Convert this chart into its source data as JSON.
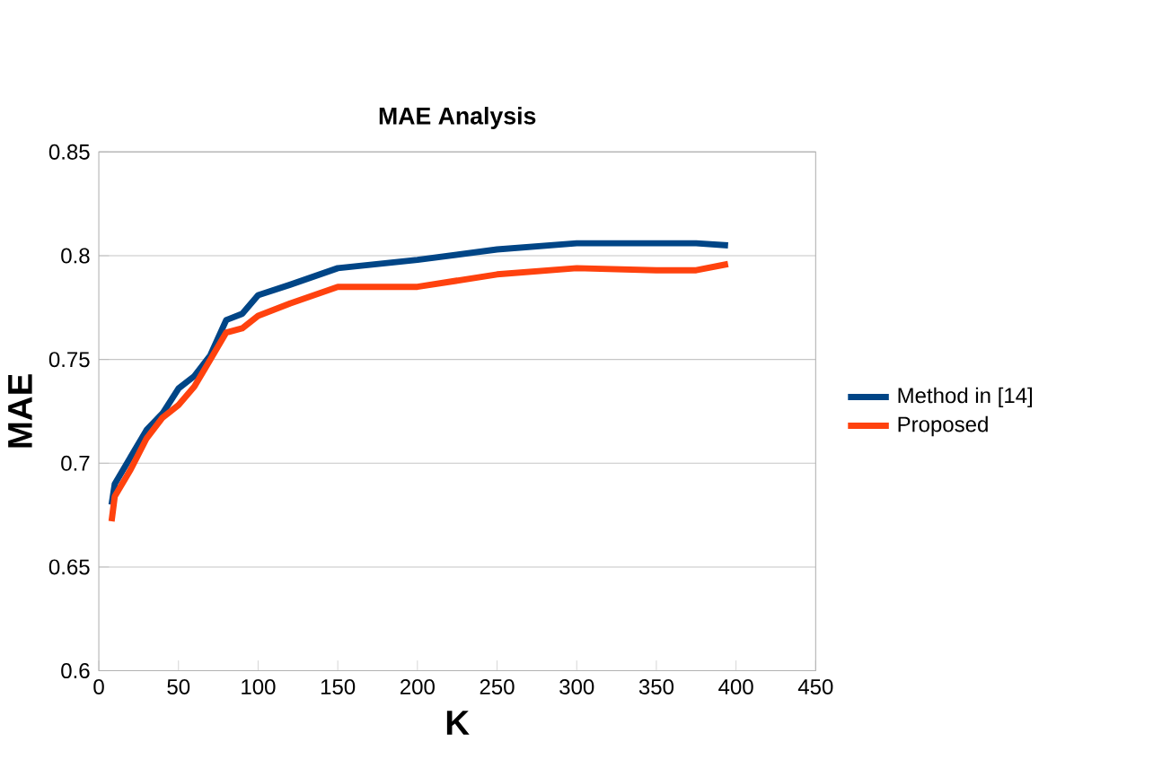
{
  "chart_data": {
    "type": "line",
    "title": "MAE Analysis",
    "xlabel": "K",
    "ylabel": "MAE",
    "xlim": [
      0,
      450
    ],
    "xticks": [
      0,
      50,
      100,
      150,
      200,
      250,
      300,
      350,
      400,
      450
    ],
    "ylim": [
      0.6,
      0.85
    ],
    "yticks": [
      0.6,
      0.65,
      0.7,
      0.75,
      0.8,
      0.85
    ],
    "grid": "y",
    "legend": "right",
    "marker": "none",
    "line_style": "solid",
    "series": [
      {
        "name": "Method in [14]",
        "color": "#004586",
        "x": [
          8,
          10,
          20,
          30,
          40,
          50,
          60,
          70,
          80,
          90,
          100,
          120,
          150,
          200,
          250,
          300,
          350,
          375,
          395
        ],
        "values": [
          0.68,
          0.69,
          0.703,
          0.716,
          0.724,
          0.736,
          0.742,
          0.752,
          0.769,
          0.772,
          0.781,
          0.786,
          0.794,
          0.798,
          0.803,
          0.806,
          0.806,
          0.806,
          0.805
        ]
      },
      {
        "name": "Proposed",
        "color": "#ff420e",
        "x": [
          8,
          10,
          20,
          30,
          40,
          50,
          60,
          70,
          80,
          90,
          100,
          120,
          150,
          200,
          250,
          300,
          350,
          375,
          395
        ],
        "values": [
          0.672,
          0.684,
          0.697,
          0.712,
          0.722,
          0.728,
          0.737,
          0.75,
          0.763,
          0.765,
          0.771,
          0.777,
          0.785,
          0.785,
          0.791,
          0.794,
          0.793,
          0.793,
          0.796
        ]
      }
    ]
  }
}
